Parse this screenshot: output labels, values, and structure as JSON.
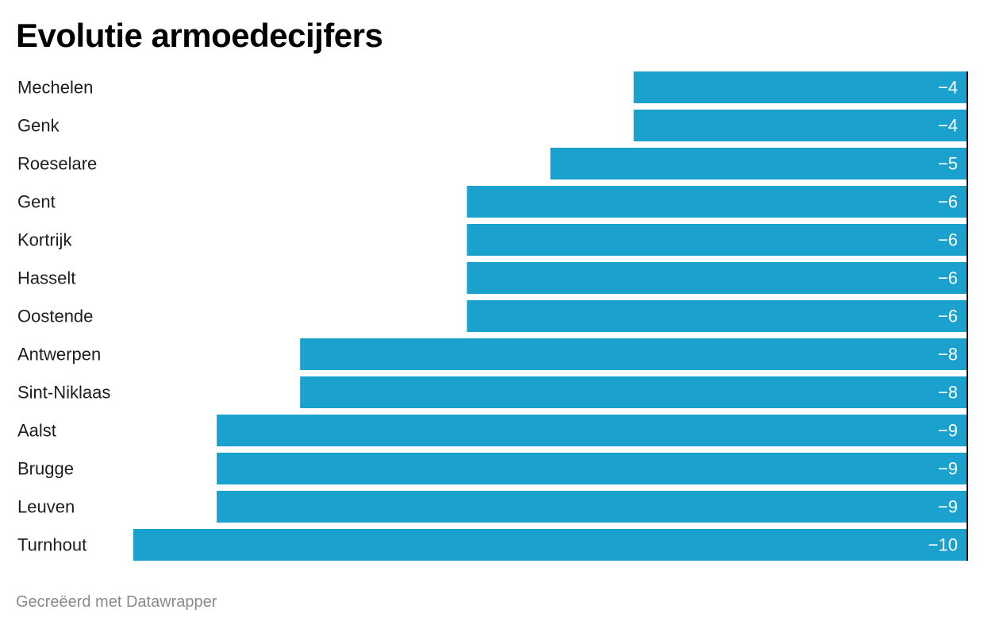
{
  "title": "Evolutie armoedecijfers",
  "footer": {
    "credit": "Gecreëerd met Datawrapper"
  },
  "colors": {
    "bar": "#1aa1cd",
    "axis": "#000000",
    "label": "#1d1d1d",
    "value_text": "#ffffff",
    "footer": "#8a8a8a"
  },
  "chart_data": {
    "type": "bar",
    "orientation": "horizontal",
    "title": "Evolutie armoedecijfers",
    "categories": [
      "Mechelen",
      "Genk",
      "Roeselare",
      "Gent",
      "Kortrijk",
      "Hasselt",
      "Oostende",
      "Antwerpen",
      "Sint-Niklaas",
      "Aalst",
      "Brugge",
      "Leuven",
      "Turnhout"
    ],
    "values": [
      -4,
      -4,
      -5,
      -6,
      -6,
      -6,
      -6,
      -8,
      -8,
      -9,
      -9,
      -9,
      -10
    ],
    "value_labels": [
      "−4",
      "−4",
      "−5",
      "−6",
      "−6",
      "−6",
      "−6",
      "−8",
      "−8",
      "−9",
      "−9",
      "−9",
      "−10"
    ],
    "xlim": [
      -10,
      0
    ],
    "grid": false,
    "legend": "none"
  }
}
